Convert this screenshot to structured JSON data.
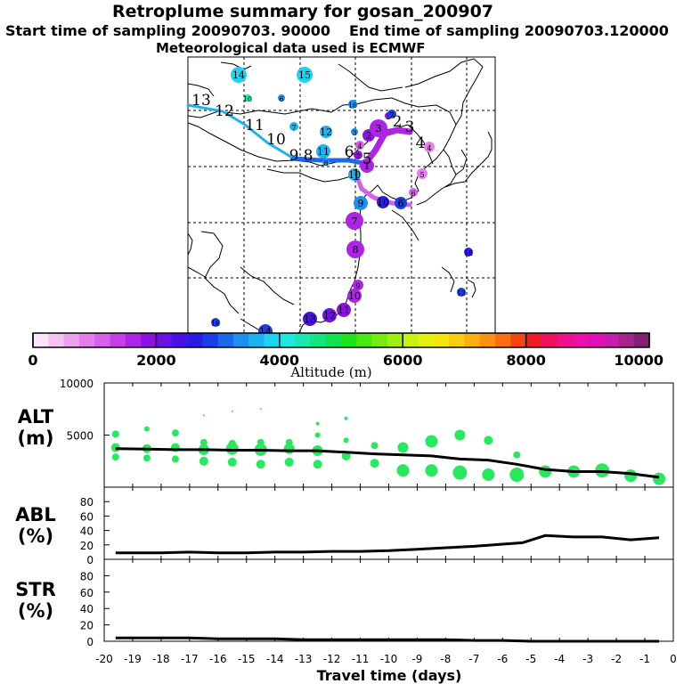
{
  "header": {
    "title": "Retroplume summary for gosan_200907",
    "start_sampling": "Start time of sampling 20090703. 90000",
    "end_sampling": "End time of sampling 20090703.120000",
    "meteo": "Meteorological data used is ECMWF"
  },
  "colorbar": {
    "ticks": [
      "0",
      "2000",
      "4000",
      "6000",
      "8000",
      "10000"
    ],
    "label": "Altitude (m)",
    "colors": [
      "#fbe5fb",
      "#f4c3f4",
      "#eba2ed",
      "#e280ea",
      "#d660e8",
      "#c83fe6",
      "#ad24e6",
      "#8e10e3",
      "#6c10e4",
      "#4712e3",
      "#2a1be6",
      "#1c3ee6",
      "#1c67ea",
      "#1c90ee",
      "#1cb3f0",
      "#1ed2f2",
      "#1fe8e0",
      "#1ae8b0",
      "#15e480",
      "#12e250",
      "#20e21a",
      "#48e814",
      "#74ec10",
      "#a0ee10",
      "#c8f010",
      "#e4f010",
      "#f4e410",
      "#f8cc10",
      "#f8b010",
      "#f89210",
      "#f87010",
      "#f84414",
      "#f01c28",
      "#f01060",
      "#f0108c",
      "#ec10a8",
      "#e010b8",
      "#c81cac",
      "#a8248c",
      "#802070"
    ]
  },
  "map_labels": [
    {
      "n": "14",
      "c": "#1ed2f2",
      "r": 9
    },
    {
      "n": "15",
      "c": "#1ed2f2",
      "r": 9
    },
    {
      "n": "10",
      "c": "#1ae8b0",
      "r": 4
    },
    {
      "n": "6",
      "c": "#1c90ee",
      "r": 4
    },
    {
      "n": "16",
      "c": "#1c90ee",
      "r": 5
    },
    {
      "n": "7",
      "c": "#1cb3f0",
      "r": 5
    },
    {
      "n": "12",
      "c": "#1cb3f0",
      "r": 7
    },
    {
      "n": "3",
      "c": "#1c90ee",
      "r": 4
    },
    {
      "n": "11",
      "c": "#1cb3f0",
      "r": 8
    },
    {
      "n": "8",
      "c": "#1c90ee",
      "r": 4
    },
    {
      "n": "10",
      "c": "#1cb3f0",
      "r": 7
    },
    {
      "n": "3",
      "c": "#8e10e3",
      "r": 4
    },
    {
      "n": "2",
      "c": "#8e10e3",
      "r": 7
    },
    {
      "n": "3",
      "c": "#ad24e6",
      "r": 10
    },
    {
      "n": "1",
      "c": "#ad24e6",
      "r": 8
    },
    {
      "n": "4",
      "c": "#e280ea",
      "r": 6
    },
    {
      "n": "5",
      "c": "#e280ea",
      "r": 6
    },
    {
      "n": "4",
      "c": "#d660e8",
      "r": 5
    },
    {
      "n": "6",
      "c": "#d660e8",
      "r": 5
    },
    {
      "n": "10",
      "c": "#2a1be6",
      "r": 7
    },
    {
      "n": "9",
      "c": "#1c90ee",
      "r": 8
    },
    {
      "n": "7",
      "c": "#ad24e6",
      "r": 10
    },
    {
      "n": "8",
      "c": "#ad24e6",
      "r": 10
    },
    {
      "n": "9",
      "c": "#ad24e6",
      "r": 6
    },
    {
      "n": "10",
      "c": "#ad24e6",
      "r": 8
    },
    {
      "n": "11",
      "c": "#8e10e3",
      "r": 8
    },
    {
      "n": "12",
      "c": "#6c10e4",
      "r": 8
    },
    {
      "n": "13",
      "c": "#4712e3",
      "r": 8
    },
    {
      "n": "14",
      "c": "#1c3ee6",
      "r": 8
    },
    {
      "n": "16",
      "c": "#1c3ee6",
      "r": 5
    },
    {
      "n": "18",
      "c": "#2a1be6",
      "r": 5
    },
    {
      "n": "13",
      "c": "#1c3ee6",
      "r": 5
    },
    {
      "n": "6",
      "c": "#1c3ee6",
      "r": 7
    },
    {
      "n": "7",
      "c": "#1c3ee6",
      "r": 5
    },
    {
      "n": "2",
      "c": "#8e10e3",
      "r": 5
    }
  ],
  "trajectory_labels": [
    "13",
    "12",
    "11",
    "10",
    "9",
    "8",
    "6",
    "5",
    "4",
    "3",
    "2",
    "1"
  ],
  "chart_data": [
    {
      "type": "scatter",
      "name": "ALT",
      "panel_label": "ALT",
      "unit_label": "(m)",
      "ylim": [
        0,
        10000
      ],
      "yticks": [
        "10000",
        "5000"
      ],
      "ytick_values": [
        10000,
        5000
      ],
      "xlim": [
        -20,
        0
      ],
      "line": {
        "x": [
          -19.6,
          -18.5,
          -17.5,
          -16.5,
          -15.5,
          -14.5,
          -13.5,
          -12.5,
          -11.5,
          -10.5,
          -9.5,
          -8.5,
          -7.5,
          -6.5,
          -5.5,
          -4.5,
          -3.5,
          -2.5,
          -1.5,
          -0.5
        ],
        "y": [
          3700,
          3650,
          3600,
          3600,
          3550,
          3550,
          3500,
          3500,
          3350,
          3200,
          3100,
          3000,
          2700,
          2600,
          2200,
          1700,
          1500,
          1500,
          1300,
          950
        ]
      },
      "points": {
        "x": [
          -19.6,
          -19.6,
          -19.6,
          -18.5,
          -18.5,
          -18.5,
          -17.5,
          -17.5,
          -17.5,
          -16.5,
          -16.5,
          -16.5,
          -15.5,
          -15.5,
          -15.5,
          -14.5,
          -14.5,
          -14.5,
          -13.5,
          -13.5,
          -13.5,
          -12.5,
          -12.5,
          -12.5,
          -11.5,
          -11.5,
          -10.5,
          -10.5,
          -9.5,
          -9.5,
          -8.5,
          -8.5,
          -7.5,
          -7.5,
          -6.5,
          -6.5,
          -5.5,
          -5.5,
          -4.5,
          -3.5,
          -2.5,
          -1.5,
          -0.5,
          -16.5,
          -15.5,
          -14.5,
          -12.5,
          -11.5
        ],
        "y": [
          5100,
          3800,
          2900,
          5600,
          3700,
          2800,
          5200,
          3800,
          2700,
          4300,
          3600,
          2500,
          4200,
          3700,
          2400,
          4300,
          3600,
          2200,
          4300,
          3700,
          2400,
          5000,
          3500,
          2200,
          4500,
          3000,
          4000,
          2300,
          3800,
          1600,
          4400,
          1600,
          5000,
          1400,
          4500,
          1200,
          3100,
          1200,
          1500,
          1500,
          1600,
          1100,
          800,
          6900,
          7300,
          7500,
          6100,
          6600
        ],
        "r": [
          4,
          5,
          4,
          3,
          5,
          4,
          4,
          5,
          4,
          4,
          6,
          5,
          4,
          7,
          5,
          4,
          7,
          5,
          4,
          6,
          5,
          3,
          6,
          5,
          3,
          5,
          4,
          5,
          6,
          7,
          7,
          7,
          6,
          8,
          5,
          7,
          4,
          8,
          7,
          7,
          8,
          7,
          7,
          1,
          1,
          1,
          2,
          2
        ]
      },
      "point_color": "#26e95e"
    },
    {
      "type": "line",
      "name": "ABL",
      "panel_label": "ABL",
      "unit_label": "(%)",
      "ylim": [
        0,
        100
      ],
      "yticks": [
        "80",
        "60",
        "40",
        "20",
        "0"
      ],
      "ytick_values": [
        80,
        60,
        40,
        20,
        0
      ],
      "xlim": [
        -20,
        0
      ],
      "x": [
        -19.6,
        -18,
        -17,
        -16,
        -15,
        -14,
        -13,
        -12,
        -11,
        -10,
        -9,
        -8,
        -7,
        -6,
        -5.3,
        -4.5,
        -3.5,
        -2.5,
        -1.5,
        -0.5
      ],
      "y": [
        9,
        9,
        10,
        9,
        9,
        10,
        10,
        11,
        11,
        12,
        14,
        16,
        18,
        21,
        23,
        33,
        31,
        31,
        27,
        30
      ]
    },
    {
      "type": "line",
      "name": "STR",
      "panel_label": "STR",
      "unit_label": "(%)",
      "ylim": [
        0,
        100
      ],
      "yticks": [
        "80",
        "60",
        "40",
        "20",
        "0"
      ],
      "ytick_values": [
        80,
        60,
        40,
        20,
        0
      ],
      "xlim": [
        -20,
        0
      ],
      "xlabel": "Travel time (days)",
      "xticks": [
        "-20",
        "-19",
        "-18",
        "-17",
        "-16",
        "-15",
        "-14",
        "-13",
        "-12",
        "-11",
        "-10",
        "-9",
        "-8",
        "-7",
        "-6",
        "-5",
        "-4",
        "-3",
        "-2",
        "-1",
        "0"
      ],
      "xtick_values": [
        -20,
        -19,
        -18,
        -17,
        -16,
        -15,
        -14,
        -13,
        -12,
        -11,
        -10,
        -9,
        -8,
        -7,
        -6,
        -5,
        -4,
        -3,
        -2,
        -1,
        0
      ],
      "x": [
        -19.6,
        -18,
        -17,
        -16,
        -15,
        -14,
        -13,
        -12,
        -11,
        -10,
        -9,
        -8,
        -7,
        -6,
        -5,
        -4,
        -3,
        -2,
        -1,
        -0.5
      ],
      "y": [
        4,
        4,
        4,
        3,
        3,
        3,
        2,
        2,
        2,
        2,
        2,
        2,
        1,
        1,
        0,
        0,
        0,
        0,
        0,
        0
      ]
    }
  ]
}
